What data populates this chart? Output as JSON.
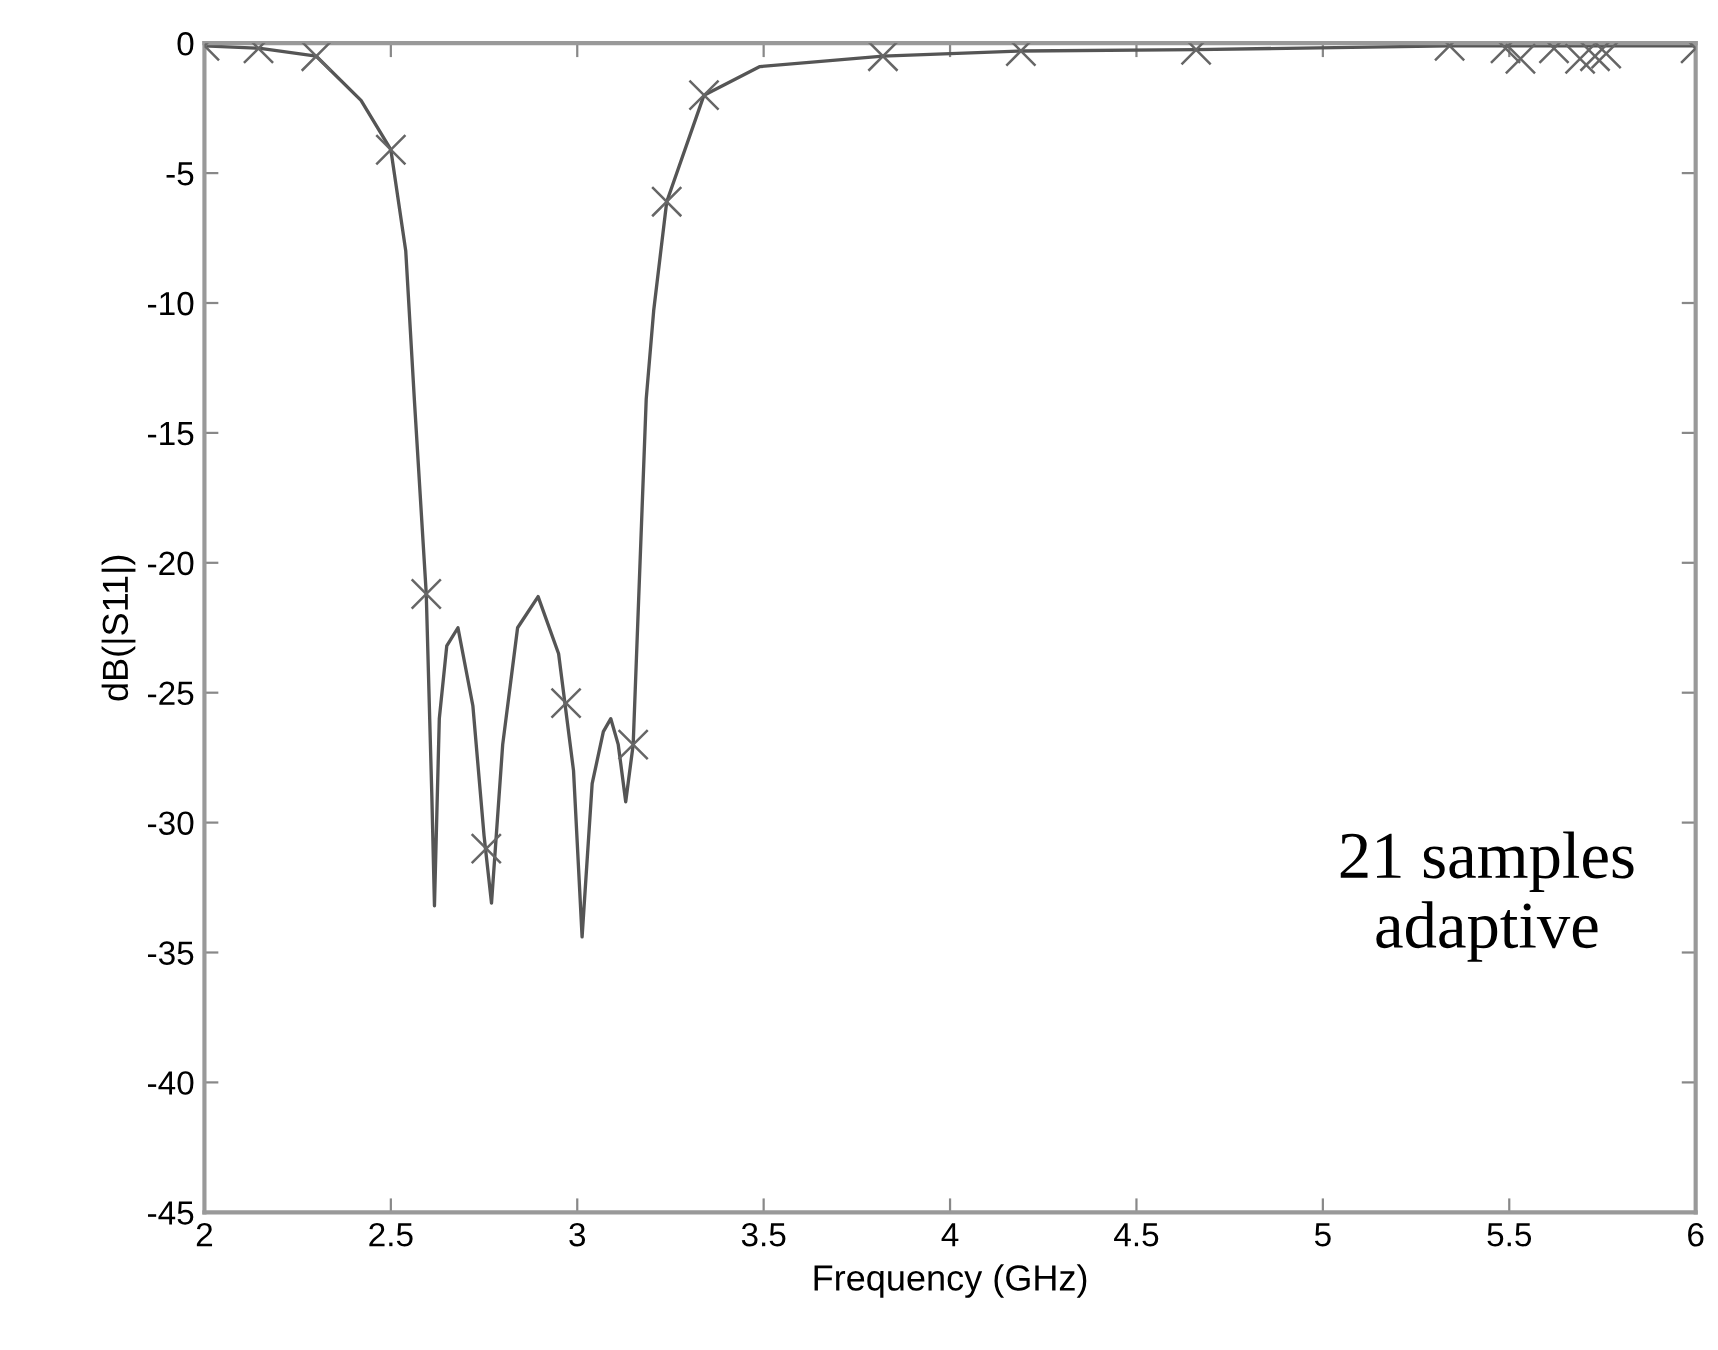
{
  "chart_data": {
    "type": "line",
    "xlabel": "Frequency (GHz)",
    "ylabel": "dB(|S11|)",
    "xlim": [
      2,
      6
    ],
    "ylim": [
      -45,
      0
    ],
    "xticks": [
      2,
      2.5,
      3,
      3.5,
      4,
      4.5,
      5,
      5.5,
      6
    ],
    "yticks": [
      0,
      -5,
      -10,
      -15,
      -20,
      -25,
      -30,
      -35,
      -40,
      -45
    ],
    "grid": false,
    "legend": false,
    "annotations": [
      "21 samples\nadaptive"
    ],
    "series": [
      {
        "color": "#555555",
        "marker": "none",
        "line_style": "solid",
        "x": [
          2.0,
          2.15,
          2.3,
          2.42,
          2.5,
          2.54,
          2.563,
          2.595,
          2.61,
          2.617,
          2.63,
          2.65,
          2.68,
          2.72,
          2.75,
          2.77,
          2.8,
          2.84,
          2.895,
          2.95,
          2.99,
          3.013,
          3.04,
          3.07,
          3.09,
          3.11,
          3.13,
          3.15,
          3.185,
          3.205,
          3.24,
          3.34,
          3.49,
          3.82,
          4.19,
          4.66,
          5.34,
          6.0
        ],
        "values": [
          -0.1,
          -0.2,
          -0.5,
          -2.2,
          -4.1,
          -8,
          -13.7,
          -21.2,
          -29,
          -33.2,
          -26,
          -23.2,
          -22.5,
          -25.5,
          -30.5,
          -33.1,
          -27,
          -22.5,
          -21.3,
          -23.5,
          -28,
          -34.4,
          -28.5,
          -26.5,
          -26.0,
          -27,
          -29.2,
          -27.0,
          -13.7,
          -10.3,
          -6.1,
          -2.0,
          -0.9,
          -0.5,
          -0.3,
          -0.25,
          -0.1,
          -0.1
        ]
      },
      {
        "type": "scatter",
        "color": "#666666",
        "marker": "cross",
        "x": [
          2.0,
          2.145,
          2.3,
          2.5,
          2.595,
          2.756,
          2.97,
          3.15,
          3.24,
          3.34,
          3.82,
          4.19,
          4.66,
          5.34,
          5.49,
          5.53,
          5.62,
          5.69,
          5.73,
          5.76,
          6.0
        ],
        "values": [
          -0.1,
          -0.2,
          -0.5,
          -4.1,
          -21.2,
          -31.0,
          -25.4,
          -27.0,
          -6.1,
          -2.0,
          -0.5,
          -0.3,
          -0.25,
          -0.1,
          -0.2,
          -0.6,
          -0.2,
          -0.6,
          -0.5,
          -0.4,
          -0.2
        ]
      }
    ]
  }
}
